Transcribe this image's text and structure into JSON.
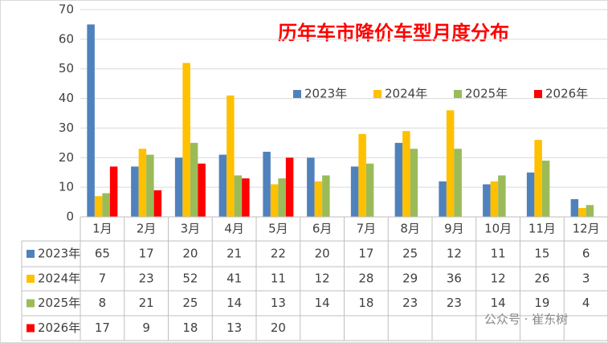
{
  "chart_data": {
    "type": "bar",
    "title": "历年车市降价车型月度分布",
    "categories": [
      "1月",
      "2月",
      "3月",
      "4月",
      "5月",
      "6月",
      "7月",
      "8月",
      "9月",
      "10月",
      "11月",
      "12月"
    ],
    "series": [
      {
        "name": "2023年",
        "color": "#4f81bd",
        "values": [
          65,
          17,
          20,
          21,
          22,
          20,
          17,
          25,
          12,
          11,
          15,
          6
        ]
      },
      {
        "name": "2024年",
        "color": "#ffc000",
        "values": [
          7,
          23,
          52,
          41,
          11,
          12,
          28,
          29,
          36,
          12,
          26,
          3
        ]
      },
      {
        "name": "2025年",
        "color": "#9bbb59",
        "values": [
          8,
          21,
          25,
          14,
          13,
          14,
          18,
          23,
          23,
          14,
          19,
          4
        ]
      },
      {
        "name": "2026年",
        "color": "#ff0000",
        "values": [
          17,
          9,
          18,
          13,
          20,
          null,
          null,
          null,
          null,
          null,
          null,
          null
        ]
      }
    ],
    "ylim": [
      0,
      70
    ],
    "yticks": [
      0,
      10,
      20,
      30,
      40,
      50,
      60,
      70
    ],
    "grid": true,
    "watermark": "公众号 · 崔东树"
  }
}
